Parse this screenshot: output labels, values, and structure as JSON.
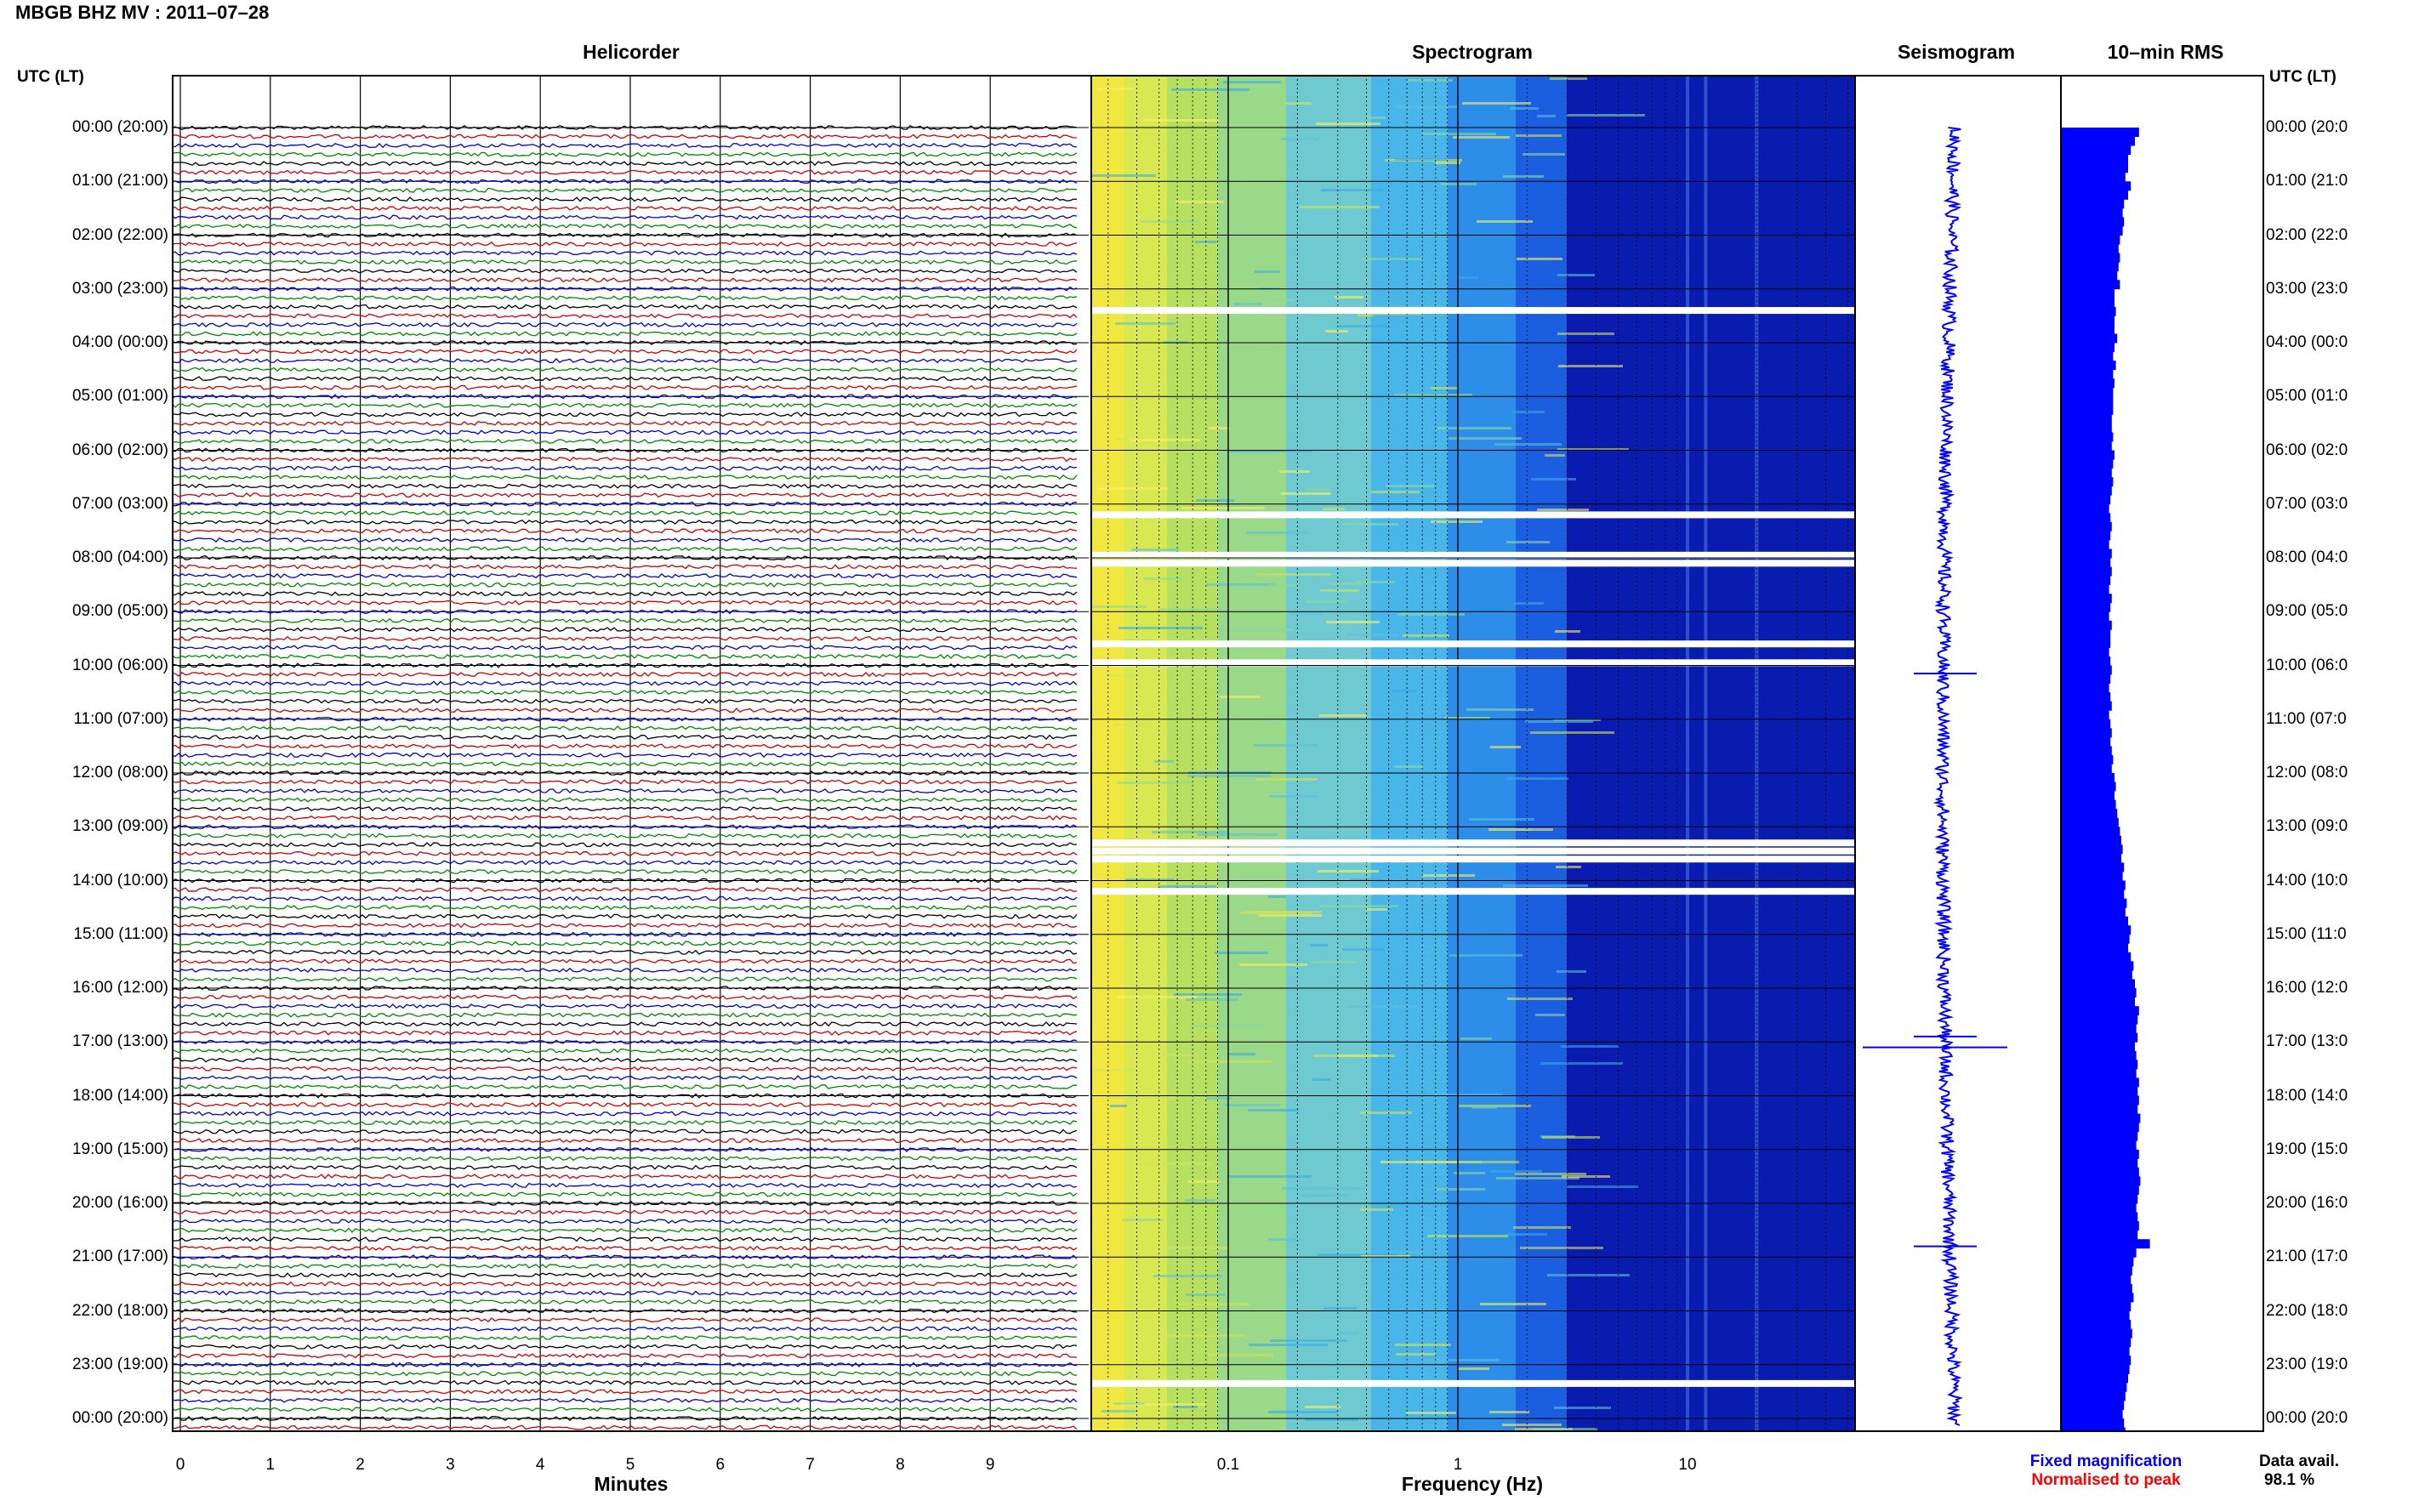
{
  "header": {
    "title": "MBGB BHZ MV : 2011–07–28"
  },
  "panels": {
    "helicorder": "Helicorder",
    "spectrogram": "Spectrogram",
    "seismogram": "Seismogram",
    "rms": "10–min RMS"
  },
  "time_axis": {
    "heading": "UTC (LT)",
    "labels": [
      "00:00 (20:00)",
      "01:00 (21:00)",
      "02:00 (22:00)",
      "03:00 (23:00)",
      "04:00 (00:00)",
      "05:00 (01:00)",
      "06:00 (02:00)",
      "07:00 (03:00)",
      "08:00 (04:00)",
      "09:00 (05:00)",
      "10:00 (06:00)",
      "11:00 (07:00)",
      "12:00 (08:00)",
      "13:00 (09:00)",
      "14:00 (10:00)",
      "15:00 (11:00)",
      "16:00 (12:00)",
      "17:00 (13:00)",
      "18:00 (14:00)",
      "19:00 (15:00)",
      "20:00 (16:00)",
      "21:00 (17:00)",
      "22:00 (18:00)",
      "23:00 (19:00)",
      "00:00 (20:00)"
    ],
    "right_labels": [
      "00:00 (20:0",
      "01:00 (21:0",
      "02:00 (22:0",
      "03:00 (23:0",
      "04:00 (00:0",
      "05:00 (01:0",
      "06:00 (02:0",
      "07:00 (03:0",
      "08:00 (04:0",
      "09:00 (05:0",
      "10:00 (06:0",
      "11:00 (07:0",
      "12:00 (08:0",
      "13:00 (09:0",
      "14:00 (10:0",
      "15:00 (11:0",
      "16:00 (12:0",
      "17:00 (13:0",
      "18:00 (14:0",
      "19:00 (15:0",
      "20:00 (16:0",
      "21:00 (17:0",
      "22:00 (18:0",
      "23:00 (19:0",
      "00:00 (20:0"
    ]
  },
  "helicorder_axis": {
    "label": "Minutes",
    "ticks": [
      "0",
      "1",
      "2",
      "3",
      "4",
      "5",
      "6",
      "7",
      "8",
      "9"
    ]
  },
  "spectrogram_axis": {
    "label": "Frequency (Hz)",
    "ticks": [
      "0.1",
      "1",
      "10"
    ]
  },
  "legend": {
    "fixed": "Fixed magnification",
    "normalised": "Normalised to peak"
  },
  "availability": {
    "label": "Data avail.",
    "value": "98.1 %"
  },
  "colors": {
    "trace_cycle": [
      "#000000",
      "#cc0000",
      "#0000cc",
      "#008800"
    ],
    "seismogram": "#0000ff",
    "rms": "#0000ff",
    "spectro_high": "#ffff40",
    "spectro_low": "#0a1cb0"
  },
  "chart_data": [
    {
      "type": "line",
      "title": "Helicorder",
      "xlabel": "Minutes",
      "ylabel": "UTC (LT)",
      "xlim": [
        0,
        10
      ],
      "rows_per_hour": 6,
      "row_minutes": 10,
      "ylim_hours": [
        0,
        24
      ],
      "grid": true
    },
    {
      "type": "heatmap",
      "title": "Spectrogram",
      "xlabel": "Frequency (Hz)",
      "xscale": "log",
      "xlim": [
        0.02,
        50
      ],
      "ylim_hours": [
        0,
        24
      ],
      "gaps_utc_hours": [
        3.4,
        7.2,
        7.95,
        8.1,
        9.6,
        9.95,
        13.3,
        13.45,
        13.6,
        14.2,
        23.35
      ],
      "grid": true
    },
    {
      "type": "line",
      "title": "Seismogram",
      "ylim_hours": [
        0,
        24
      ],
      "spikes_utc_hours": [
        10.15,
        16.9,
        17.1,
        20.8
      ]
    },
    {
      "type": "bar",
      "title": "10–min RMS",
      "orientation": "horizontal",
      "bin_minutes": 10,
      "ylim_hours": [
        0,
        24
      ],
      "xlim": [
        0,
        1.0
      ],
      "values": [
        0.58,
        0.55,
        0.52,
        0.5,
        0.5,
        0.48,
        0.52,
        0.5,
        0.47,
        0.46,
        0.47,
        0.46,
        0.44,
        0.43,
        0.44,
        0.43,
        0.42,
        0.44,
        0.4,
        0.4,
        0.41,
        0.4,
        0.4,
        0.42,
        0.4,
        0.39,
        0.41,
        0.39,
        0.4,
        0.39,
        0.39,
        0.39,
        0.38,
        0.38,
        0.39,
        0.38,
        0.4,
        0.39,
        0.38,
        0.39,
        0.38,
        0.37,
        0.36,
        0.37,
        0.38,
        0.37,
        0.36,
        0.38,
        0.37,
        0.38,
        0.37,
        0.36,
        0.38,
        0.37,
        0.36,
        0.38,
        0.37,
        0.37,
        0.36,
        0.37,
        0.38,
        0.37,
        0.36,
        0.37,
        0.38,
        0.36,
        0.37,
        0.38,
        0.37,
        0.38,
        0.39,
        0.38,
        0.4,
        0.41,
        0.4,
        0.41,
        0.42,
        0.43,
        0.44,
        0.45,
        0.46,
        0.45,
        0.47,
        0.46,
        0.48,
        0.47,
        0.49,
        0.48,
        0.5,
        0.52,
        0.51,
        0.5,
        0.52,
        0.54,
        0.53,
        0.55,
        0.56,
        0.55,
        0.58,
        0.57,
        0.56,
        0.57,
        0.55,
        0.56,
        0.57,
        0.56,
        0.58,
        0.57,
        0.58,
        0.57,
        0.59,
        0.58,
        0.57,
        0.56,
        0.58,
        0.57,
        0.58,
        0.59,
        0.58,
        0.57,
        0.56,
        0.57,
        0.58,
        0.57,
        0.66,
        0.56,
        0.54,
        0.53,
        0.52,
        0.53,
        0.54,
        0.52,
        0.51,
        0.52,
        0.53,
        0.52,
        0.51,
        0.52,
        0.51,
        0.5,
        0.49,
        0.48,
        0.47,
        0.46,
        0.47,
        0.48,
        0.47,
        0.46,
        0.45,
        0.46
      ]
    }
  ]
}
